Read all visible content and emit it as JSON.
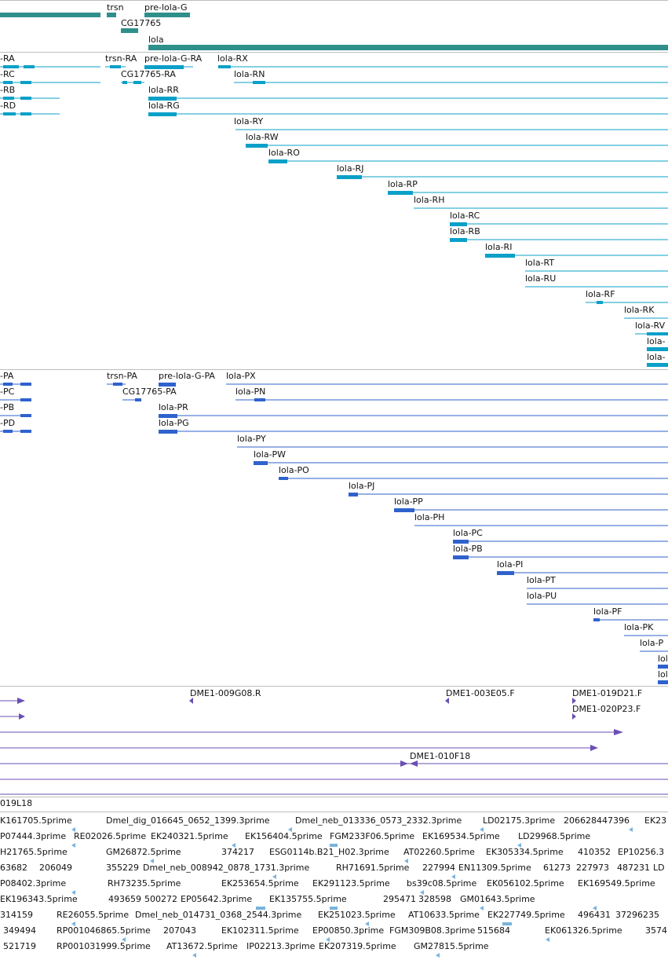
{
  "colors": {
    "gene": "#2f8f8a",
    "transcript": "#0aa0c8",
    "cds": "#2f62cc",
    "clone": "#6a4fb4",
    "est": "#79b3dd"
  },
  "gene_track": {
    "trsn": "trsn",
    "pre_lola_g": "pre-lola-G",
    "cg17765": "CG17765",
    "lola": "lola"
  },
  "transcript_track": {
    "ra": "-RA",
    "rc": "-RC",
    "rb": "-RB",
    "rd": "-RD",
    "trsn_ra": "trsn-RA",
    "pre_lola_g_ra": "pre-lola-G-RA",
    "cg17765_ra": "CG17765-RA",
    "rx": "lola-RX",
    "rn": "lola-RN",
    "rr": "lola-RR",
    "rg": "lola-RG",
    "ry": "lola-RY",
    "rw": "lola-RW",
    "ro": "lola-RO",
    "rj": "lola-RJ",
    "rp": "lola-RP",
    "rh": "lola-RH",
    "rc2": "lola-RC",
    "rb2": "lola-RB",
    "ri": "lola-RI",
    "rt": "lola-RT",
    "ru": "lola-RU",
    "rf": "lola-RF",
    "rk": "lola-RK",
    "rv": "lola-RV",
    "r1": "lola-",
    "r2": "lola-"
  },
  "protein_track": {
    "pa": "-PA",
    "pc": "-PC",
    "pb": "-PB",
    "pd": "-PD",
    "trsn_pa": "trsn-PA",
    "pre_lola_g_pa": "pre-lola-G-PA",
    "cg17765_pa": "CG17765-PA",
    "px": "lola-PX",
    "pn": "lola-PN",
    "pr": "lola-PR",
    "pg": "lola-PG",
    "py": "lola-PY",
    "pw": "lola-PW",
    "po": "lola-PO",
    "pj": "lola-PJ",
    "pp": "lola-PP",
    "ph": "lola-PH",
    "pc2": "lola-PC",
    "pb2": "lola-PB",
    "pi": "lola-PI",
    "pt": "lola-PT",
    "pu": "lola-PU",
    "pf": "lola-PF",
    "pk": "lola-PK",
    "pv": "lola-P",
    "p1": "lol",
    "p2": "lol"
  },
  "clone_track": {
    "c1": "DME1-009G08.R",
    "c2": "DME1-003E05.F",
    "c3": "DME1-019D21.F",
    "c4": "DME1-020P23.F",
    "c5": "DME1-010F18",
    "c6": "019L18"
  },
  "est_track": {
    "rows": [
      [
        "K161705.5prime",
        "Dmel_dig_016645_0652_1399.3prime",
        "Dmel_neb_013336_0573_2332.3prime",
        "LD02175.3prime",
        "206628447396",
        "EK23"
      ],
      [
        "P07444.3prime",
        "RE02026.5prime",
        "EK240321.5prime",
        "EK156404.5prime",
        "FGM233F06.5prime",
        "EK169534.5prime",
        "LD29968.5prime"
      ],
      [
        "H21765.5prime",
        "GM26872.5prime",
        "374217",
        "ESG0114b.B21_H02.3prime",
        "AT02260.5prime",
        "EK305334.5prime",
        "410352",
        "EP10256.3"
      ],
      [
        "63682",
        "206049",
        "355229",
        "Dmel_neb_008942_0878_1731.3prime",
        "RH71691.5prime",
        "227994",
        "EN11309.5prime",
        "61273",
        "227973",
        "487231",
        "LD"
      ],
      [
        "P08402.3prime",
        "RH73235.5prime",
        "EK253654.5prime",
        "EK291123.5prime",
        "bs39c08.5prime",
        "EK056102.5prime",
        "EK169549.5prime"
      ],
      [
        "EK196343.5prime",
        "493659",
        "500272",
        "EP05642.3prime",
        "EK135755.5prime",
        "295471",
        "328598",
        "GM01643.5prime"
      ],
      [
        "314159",
        "RE26055.5prime",
        "Dmel_neb_014731_0368_2544.3prime",
        "EK251023.5prime",
        "AT10633.5prime",
        "EK227749.5prime",
        "496431",
        "37296235"
      ],
      [
        "349494",
        "RP001046865.5prime",
        "207043",
        "EK102311.5prime",
        "EP00850.3prime",
        "FGM309B08.3prime",
        "515684",
        "EK061326.5prime",
        "3574"
      ],
      [
        "521719",
        "RP001031999.5prime",
        "AT13672.5prime",
        "IP02213.3prime",
        "EK207319.5prime",
        "GM27815.5prime"
      ]
    ]
  }
}
